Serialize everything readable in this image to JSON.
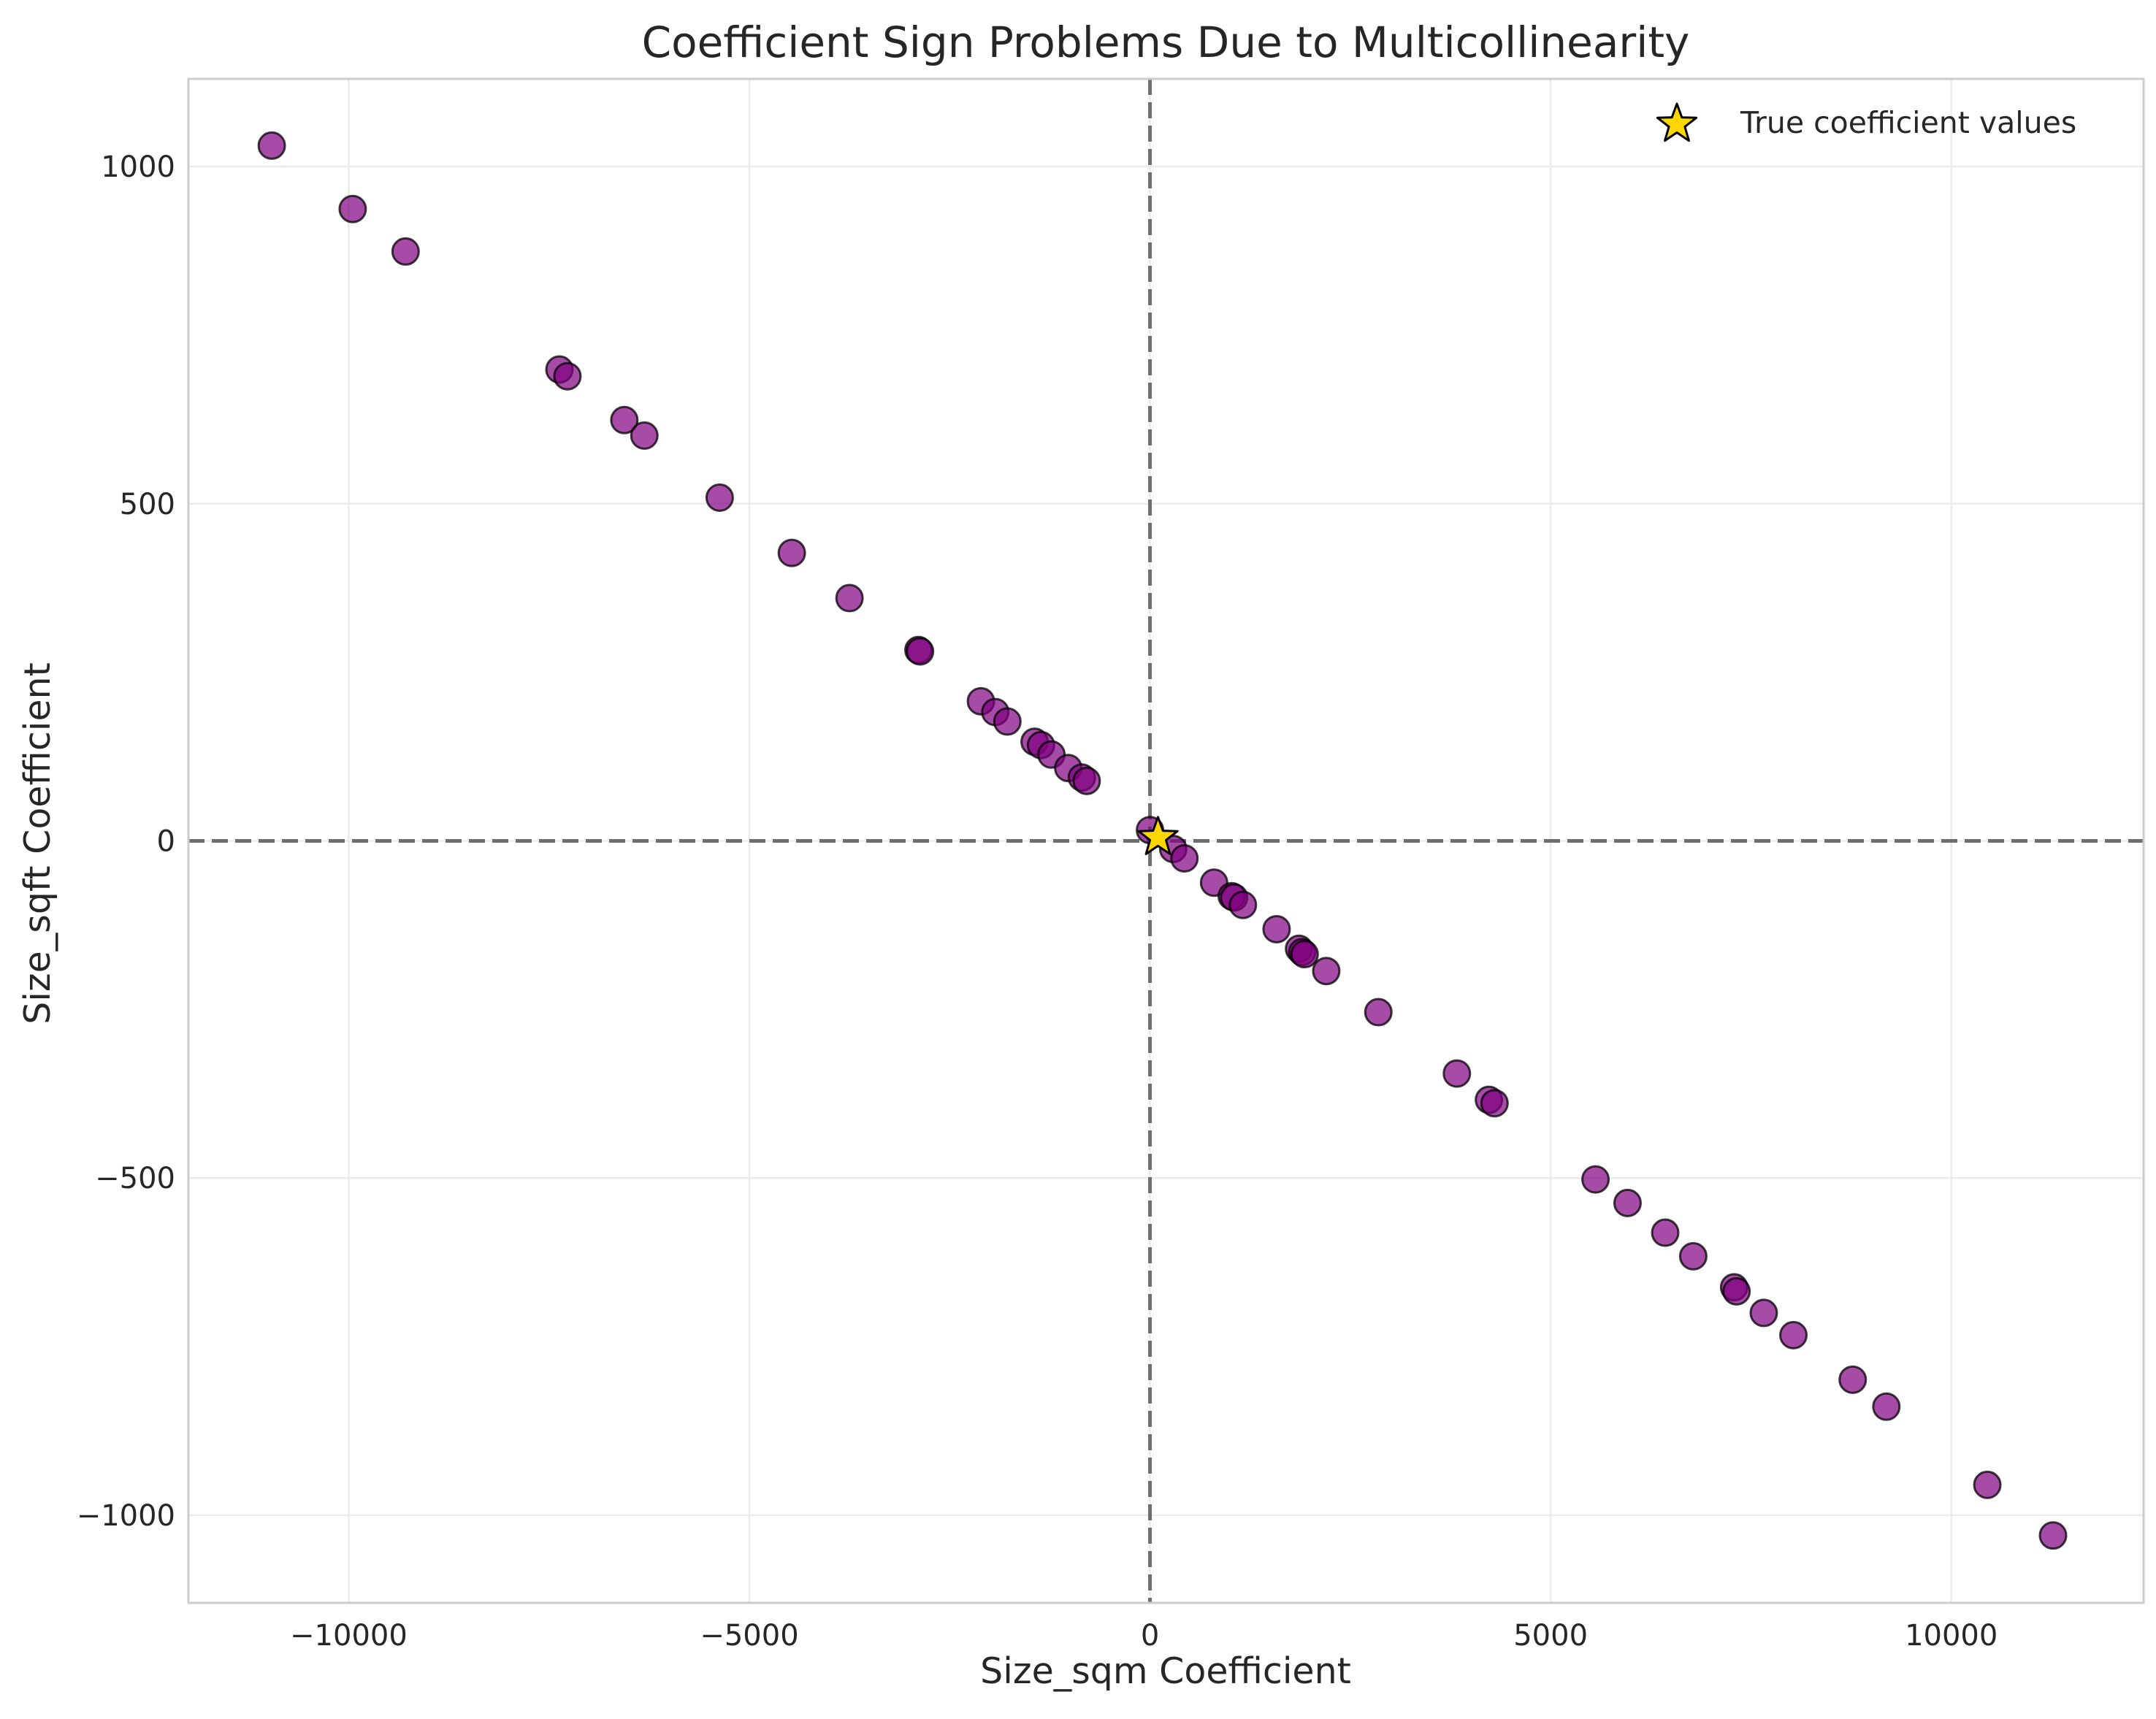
{
  "chart_data": {
    "type": "scatter",
    "title": "Coefficient Sign Problems Due to Multicollinearity",
    "xlabel": "Size_sqm Coefficient",
    "ylabel": "Size_sqft Coefficient",
    "xlim": [
      -12000,
      12400
    ],
    "ylim": [
      -1130,
      1130
    ],
    "xticks": [
      -10000,
      -5000,
      0,
      5000,
      10000
    ],
    "xtick_labels": [
      "−10000",
      "−5000",
      "0",
      "5000",
      "10000"
    ],
    "yticks": [
      -1000,
      -500,
      0,
      500,
      1000
    ],
    "ytick_labels": [
      "−1000",
      "−500",
      "0",
      "500",
      "1000"
    ],
    "grid": true,
    "reference_lines": {
      "x": 0,
      "y": 0,
      "style": "dashed"
    },
    "legend_position": "top-right",
    "colors": {
      "points": "#800080",
      "points_edge": "#000000",
      "star": "#FFD700",
      "reference_line": "#6e6e6e",
      "grid": "#ebebeb",
      "spine": "#cccccc"
    },
    "series": [
      {
        "name": "",
        "marker": "circle",
        "points": [
          [
            -10960,
            1031
          ],
          [
            -9950,
            937
          ],
          [
            -9290,
            874
          ],
          [
            -7370,
            699
          ],
          [
            -7270,
            689
          ],
          [
            -6560,
            624
          ],
          [
            -6310,
            601
          ],
          [
            -5370,
            509
          ],
          [
            -4470,
            427
          ],
          [
            -3750,
            360
          ],
          [
            -2890,
            283
          ],
          [
            -2870,
            281
          ],
          [
            -2110,
            207
          ],
          [
            -1930,
            191
          ],
          [
            -1780,
            177
          ],
          [
            -1440,
            147
          ],
          [
            -1360,
            142
          ],
          [
            -1230,
            128
          ],
          [
            -1020,
            108
          ],
          [
            -850,
            94
          ],
          [
            -790,
            89
          ],
          [
            0,
            16
          ],
          [
            290,
            -12
          ],
          [
            430,
            -26
          ],
          [
            800,
            -62
          ],
          [
            1020,
            -82
          ],
          [
            1050,
            -84
          ],
          [
            1160,
            -95
          ],
          [
            1580,
            -131
          ],
          [
            1860,
            -160
          ],
          [
            1900,
            -165
          ],
          [
            1930,
            -168
          ],
          [
            2200,
            -193
          ],
          [
            2850,
            -254
          ],
          [
            3830,
            -345
          ],
          [
            4230,
            -384
          ],
          [
            4300,
            -389
          ],
          [
            5560,
            -502
          ],
          [
            5960,
            -537
          ],
          [
            6430,
            -581
          ],
          [
            6780,
            -616
          ],
          [
            7290,
            -662
          ],
          [
            7320,
            -668
          ],
          [
            7660,
            -700
          ],
          [
            8030,
            -733
          ],
          [
            8770,
            -799
          ],
          [
            9190,
            -839
          ],
          [
            10450,
            -955
          ],
          [
            11270,
            -1030
          ]
        ]
      },
      {
        "name": "True coefficient values",
        "marker": "star",
        "points": [
          [
            100,
            5
          ]
        ]
      }
    ]
  }
}
